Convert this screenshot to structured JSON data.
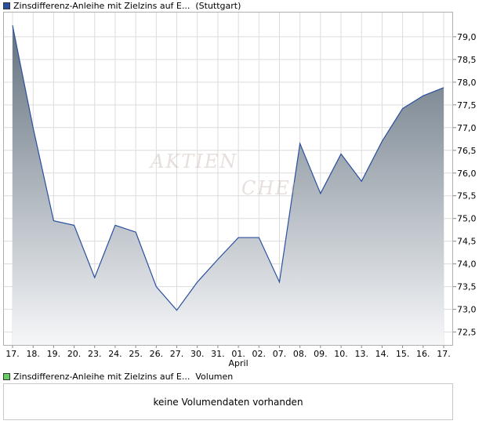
{
  "legend": {
    "price_label": "Zinsdifferenz-Anleihe mit Zielzins auf E...",
    "price_venue": "(Stuttgart)",
    "volume_label": "Zinsdifferenz-Anleihe mit Zielzins auf E...",
    "volume_suffix": "Volumen",
    "price_swatch_color": "#2a4fa0",
    "volume_swatch_color": "#66cc66"
  },
  "watermark": {
    "line1": "AKTIEN",
    "line2": "CHEC"
  },
  "volume_panel": {
    "message": "keine Volumendaten vorhanden"
  },
  "chart_data": {
    "type": "area",
    "categories": [
      "17.",
      "18.",
      "19.",
      "20.",
      "23.",
      "24.",
      "25.",
      "26.",
      "27.",
      "30.",
      "31.",
      "01.",
      "02.",
      "07.",
      "08.",
      "09.",
      "10.",
      "13.",
      "14.",
      "15.",
      "16.",
      "17."
    ],
    "month_label": {
      "at_index": 11,
      "text": "April"
    },
    "values": [
      79.25,
      77.0,
      74.95,
      74.85,
      73.7,
      74.85,
      74.7,
      73.5,
      72.98,
      73.6,
      74.1,
      74.58,
      74.58,
      73.6,
      76.65,
      75.55,
      76.42,
      75.82,
      76.7,
      77.42,
      77.7,
      77.88
    ],
    "y_ticks": [
      "72,5",
      "73,0",
      "73,5",
      "74,0",
      "74,5",
      "75,0",
      "75,5",
      "76,0",
      "76,5",
      "77,0",
      "77,5",
      "78,0",
      "78,5",
      "79,0"
    ],
    "ylim": [
      72.2,
      79.55
    ],
    "grid": true,
    "line_color": "#2a4fa0",
    "fill_top_color": "#63717e",
    "fill_bottom_color": "#f6f7f9",
    "gridline_color": "#dcdcdc"
  }
}
